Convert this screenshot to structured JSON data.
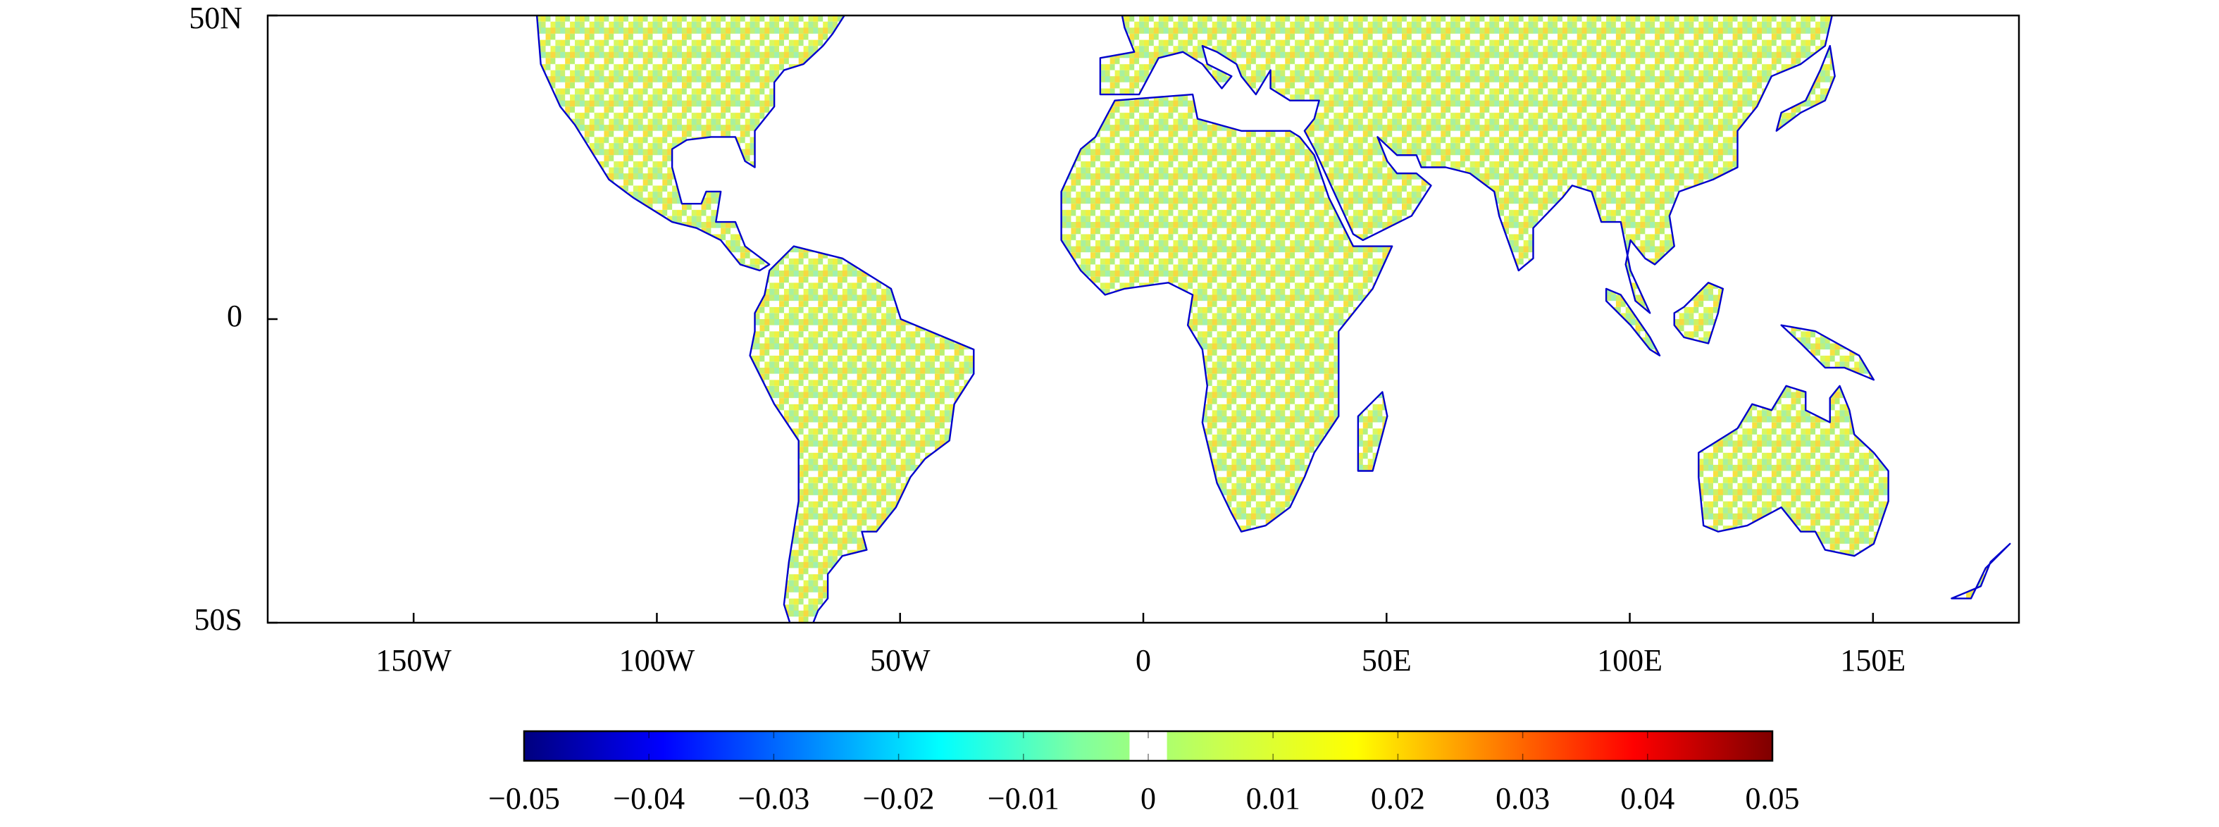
{
  "map": {
    "xlim": [
      -180,
      180
    ],
    "ylim": [
      -50,
      50
    ],
    "xticks": [
      {
        "value": -150,
        "label": "150W"
      },
      {
        "value": -100,
        "label": "100W"
      },
      {
        "value": -50,
        "label": "50W"
      },
      0,
      {
        "value": 50,
        "label": "50E"
      },
      {
        "value": 100,
        "label": "100E"
      },
      {
        "value": 150,
        "label": "150E"
      }
    ],
    "yticks": [
      {
        "value": 50,
        "label": "50N"
      },
      0,
      {
        "value": -50,
        "label": "50S"
      }
    ],
    "coast_color": "#0000cc"
  },
  "colorbar": {
    "range": [
      -0.05,
      0.05
    ],
    "colormap": [
      "#00007f",
      "#0000ff",
      "#007fff",
      "#00ffff",
      "#7fffa0",
      "#c8ff50",
      "#ffff00",
      "#ff7f00",
      "#ff0000",
      "#7f0000"
    ],
    "white_range": [
      -0.0015,
      0.0015
    ],
    "ticks": [
      {
        "value": -0.05,
        "label": "−0.05"
      },
      {
        "value": -0.04,
        "label": "−0.04"
      },
      {
        "value": -0.03,
        "label": "−0.03"
      },
      {
        "value": -0.02,
        "label": "−0.02"
      },
      {
        "value": -0.01,
        "label": "−0.01"
      },
      0,
      0.01,
      0.02,
      0.03,
      0.04,
      0.05
    ]
  }
}
